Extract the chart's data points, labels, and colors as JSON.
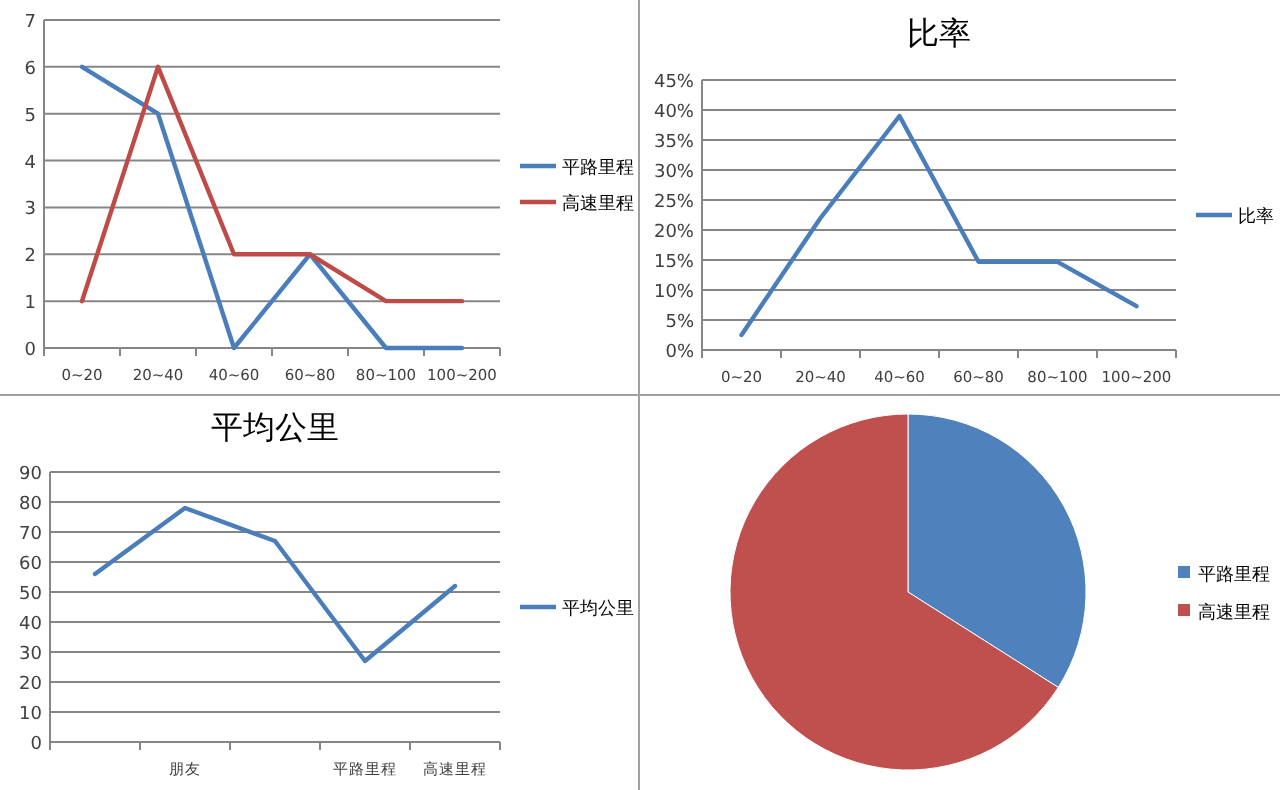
{
  "chart_data": [
    {
      "type": "line",
      "categories": [
        "0~20",
        "20~40",
        "40~60",
        "60~80",
        "80~100",
        "100~200"
      ],
      "series": [
        {
          "name": "平路里程",
          "color": "#4a7ebb",
          "values": [
            6,
            5,
            0,
            2,
            0,
            0
          ]
        },
        {
          "name": "高速里程",
          "color": "#be4b48",
          "values": [
            1,
            6,
            2,
            2,
            1,
            1
          ]
        }
      ],
      "ylim": [
        0,
        7
      ],
      "yticks": [
        0,
        1,
        2,
        3,
        4,
        5,
        6,
        7
      ],
      "grid": "y",
      "legend": "right",
      "marker": "none",
      "line_style": "solid"
    },
    {
      "type": "line",
      "title": "比率",
      "categories": [
        "0~20",
        "20~40",
        "40~60",
        "60~80",
        "80~100",
        "100~200"
      ],
      "series": [
        {
          "name": "比率",
          "color": "#4a7ebb",
          "values": [
            2.5,
            22,
            39,
            14.7,
            14.7,
            7.3
          ]
        }
      ],
      "ylim": [
        0,
        45
      ],
      "yticks": [
        {
          "value": 0,
          "label": "0%"
        },
        {
          "value": 5,
          "label": "5%"
        },
        {
          "value": 10,
          "label": "10%"
        },
        {
          "value": 15,
          "label": "15%"
        },
        {
          "value": 20,
          "label": "20%"
        },
        {
          "value": 25,
          "label": "25%"
        },
        {
          "value": 30,
          "label": "30%"
        },
        {
          "value": 35,
          "label": "35%"
        },
        {
          "value": 40,
          "label": "40%"
        },
        {
          "value": 45,
          "label": "45%"
        }
      ],
      "grid": "y",
      "legend": "right",
      "marker": "none",
      "line_style": "solid"
    },
    {
      "type": "line",
      "title": "平均公里",
      "categories": [
        null,
        "朋友",
        null,
        "平路里程",
        "高速里程"
      ],
      "series": [
        {
          "name": "平均公里",
          "color": "#4a7ebb",
          "values": [
            56,
            78,
            67,
            27,
            52
          ]
        }
      ],
      "ylim": [
        0,
        90
      ],
      "yticks": [
        0,
        10,
        20,
        30,
        40,
        50,
        60,
        70,
        80,
        90
      ],
      "grid": "y",
      "legend": "right",
      "marker": "none",
      "line_style": "solid"
    },
    {
      "type": "pie",
      "categories": [
        "平路里程",
        "高速里程"
      ],
      "values": [
        34,
        66
      ],
      "colors": [
        "#4f81bd",
        "#c0504d"
      ],
      "legend": "right"
    }
  ]
}
